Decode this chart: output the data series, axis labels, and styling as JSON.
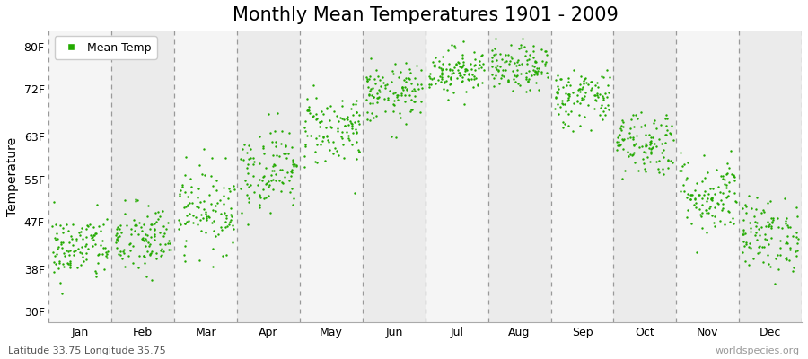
{
  "title": "Monthly Mean Temperatures 1901 - 2009",
  "ylabel": "Temperature",
  "footer_left": "Latitude 33.75 Longitude 35.75",
  "footer_right": "worldspecies.org",
  "legend_label": "Mean Temp",
  "dot_color": "#22AA00",
  "yticks": [
    30,
    38,
    47,
    55,
    63,
    72,
    80
  ],
  "ytick_labels": [
    "30F",
    "38F",
    "47F",
    "55F",
    "63F",
    "72F",
    "80F"
  ],
  "ylim": [
    28,
    83
  ],
  "months": [
    "Jan",
    "Feb",
    "Mar",
    "Apr",
    "May",
    "Jun",
    "Jul",
    "Aug",
    "Sep",
    "Oct",
    "Nov",
    "Dec"
  ],
  "mean_temps_F": [
    42.0,
    43.5,
    49.5,
    57.0,
    64.5,
    71.0,
    75.5,
    75.8,
    70.5,
    62.0,
    52.0,
    44.5
  ],
  "std_temps_F": [
    3.2,
    3.5,
    4.0,
    4.0,
    3.5,
    2.8,
    2.2,
    2.2,
    2.8,
    3.2,
    3.8,
    3.5
  ],
  "n_years": 109,
  "bg_colors": [
    "#f5f5f5",
    "#ebebeb"
  ],
  "title_fontsize": 15,
  "axis_fontsize": 10,
  "tick_fontsize": 9,
  "footer_fontsize": 8,
  "dot_size": 3
}
